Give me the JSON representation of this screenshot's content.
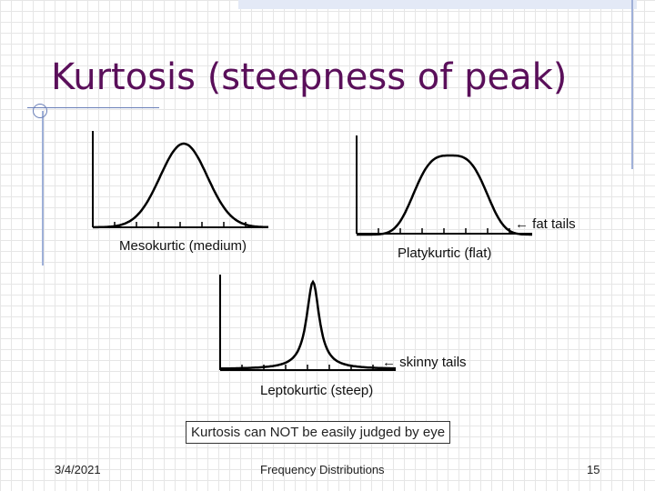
{
  "slide": {
    "title": "Kurtosis (steepness of peak)",
    "labels": {
      "mesokurtic": "Mesokurtic (medium)",
      "platykurtic": "Platykurtic (flat)",
      "leptokurtic": "Leptokurtic (steep)",
      "fat_tails": "← fat tails",
      "skinny_tails": "← skinny tails"
    },
    "note": "Kurtosis can NOT be easily judged by eye",
    "footer": {
      "date": "3/4/2021",
      "topic": "Frequency Distributions",
      "page": "15"
    }
  },
  "colors": {
    "title": "#5a0f5a",
    "accent_line": "#6a7fb8",
    "curve": "#000000"
  }
}
